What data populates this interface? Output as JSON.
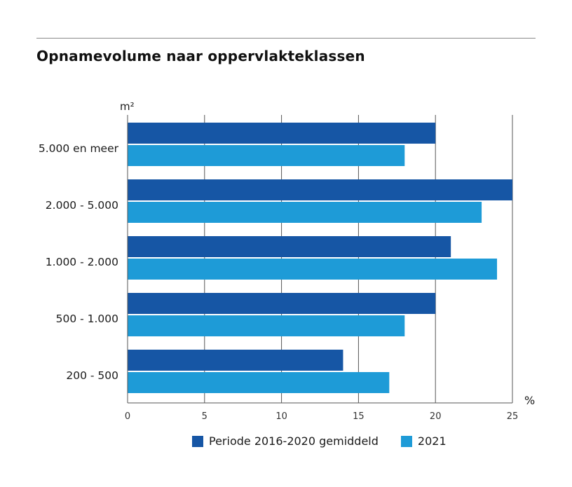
{
  "chart_data": {
    "type": "bar",
    "orientation": "horizontal",
    "title": "Opnamevolume naar oppervlakteklassen",
    "ylabel": "m²",
    "xlabel": "%",
    "categories": [
      "5.000 en meer",
      "2.000 - 5.000",
      "1.000 - 2.000",
      "500 - 1.000",
      "200 - 500"
    ],
    "series": [
      {
        "name": "Periode 2016-2020 gemiddeld",
        "color": "#1656a5",
        "values": [
          20,
          25,
          21,
          20,
          14
        ]
      },
      {
        "name": "2021",
        "color": "#1e9bd7",
        "values": [
          18,
          23,
          24,
          18,
          17
        ]
      }
    ],
    "xlim": [
      0,
      25
    ],
    "xticks": [
      0,
      5,
      10,
      15,
      20,
      25
    ],
    "grid": true,
    "legend_position": "bottom"
  }
}
